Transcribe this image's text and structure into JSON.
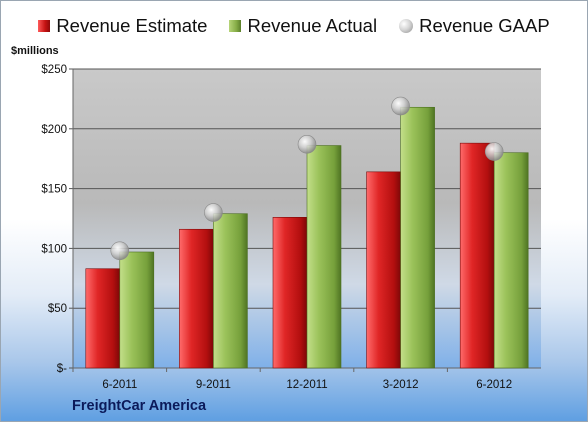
{
  "legend": {
    "estimate": "Revenue Estimate",
    "actual": "Revenue Actual",
    "gaap": "Revenue GAAP"
  },
  "unit_label": "$millions",
  "company": "FreightCar America",
  "colors": {
    "estimate": "#c41212",
    "actual": "#86ad47",
    "gaap": "#bfbfbf"
  },
  "chart_data": {
    "type": "bar",
    "categories": [
      "6-2011",
      "9-2011",
      "12-2011",
      "3-2012",
      "6-2012"
    ],
    "series": [
      {
        "name": "Revenue Estimate",
        "type": "bar",
        "values": [
          83,
          116,
          126,
          164,
          188
        ]
      },
      {
        "name": "Revenue Actual",
        "type": "bar",
        "values": [
          97,
          129,
          186,
          218,
          180
        ]
      },
      {
        "name": "Revenue GAAP",
        "type": "scatter",
        "values": [
          98,
          130,
          187,
          219,
          181
        ]
      }
    ],
    "ylabel": "$millions",
    "ylim": [
      0,
      250
    ],
    "yticks": [
      0,
      50,
      100,
      150,
      200,
      250
    ],
    "ytick_labels": [
      "$-",
      "$50",
      "$100",
      "$150",
      "$200",
      "$250"
    ],
    "grid": true,
    "legend_position": "top"
  }
}
